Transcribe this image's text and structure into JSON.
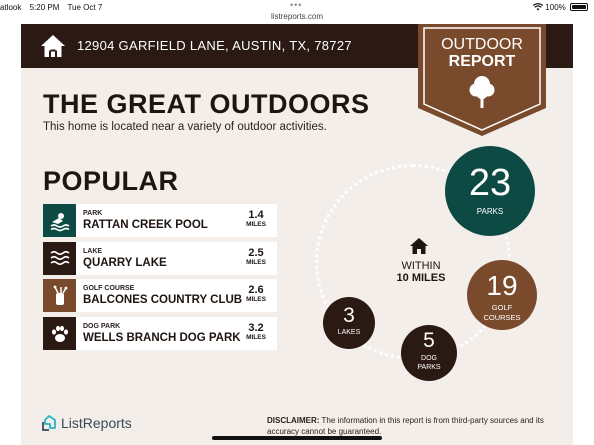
{
  "status_bar": {
    "app_label": "atlook",
    "time": "5:20 PM",
    "date": "Tue Oct 7",
    "url": "listreports.com",
    "battery": "100%",
    "icons": [
      "wifi-icon",
      "battery-icon"
    ]
  },
  "header": {
    "address": "12904 GARFIELD LANE, AUSTIN, TX, 78727",
    "banner_line1": "OUTDOOR",
    "banner_line2": "REPORT"
  },
  "main": {
    "title": "THE GREAT OUTDOORS",
    "subtitle": "This home is located near a variety of outdoor activities.",
    "popular_heading": "POPULAR",
    "items": [
      {
        "category": "PARK",
        "name": "RATTAN CREEK POOL",
        "distance": "1.4",
        "unit": "MILES",
        "icon": "pool-icon",
        "color": "#0e4a44"
      },
      {
        "category": "LAKE",
        "name": "QUARRY LAKE",
        "distance": "2.5",
        "unit": "MILES",
        "icon": "waves-icon",
        "color": "#2b1a14"
      },
      {
        "category": "GOLF COURSE",
        "name": "BALCONES COUNTRY CLUB",
        "distance": "2.6",
        "unit": "MILES",
        "icon": "golf-bag-icon",
        "color": "#7a4a2c"
      },
      {
        "category": "DOG PARK",
        "name": "WELLS BRANCH DOG PARK",
        "distance": "3.2",
        "unit": "MILES",
        "icon": "paw-icon",
        "color": "#2b1a14"
      }
    ]
  },
  "summary": {
    "within_line1": "WITHIN",
    "within_line2": "10 MILES",
    "parks": {
      "value": "23",
      "label": "PARKS"
    },
    "golf": {
      "value": "19",
      "label1": "GOLF",
      "label2": "COURSES"
    },
    "lakes": {
      "value": "3",
      "label": "LAKES"
    },
    "dog_parks": {
      "value": "5",
      "label1": "DOG",
      "label2": "PARKS"
    }
  },
  "footer": {
    "logo_text": "ListReports",
    "disclaimer_label": "DISCLAIMER:",
    "disclaimer_text": " The information in this report is from third-party sources and its accuracy cannot be guaranteed."
  },
  "colors": {
    "dark_brown": "#2b1a14",
    "teal": "#0e4a44",
    "brown": "#7a4a2c",
    "background": "#f3eeea"
  }
}
